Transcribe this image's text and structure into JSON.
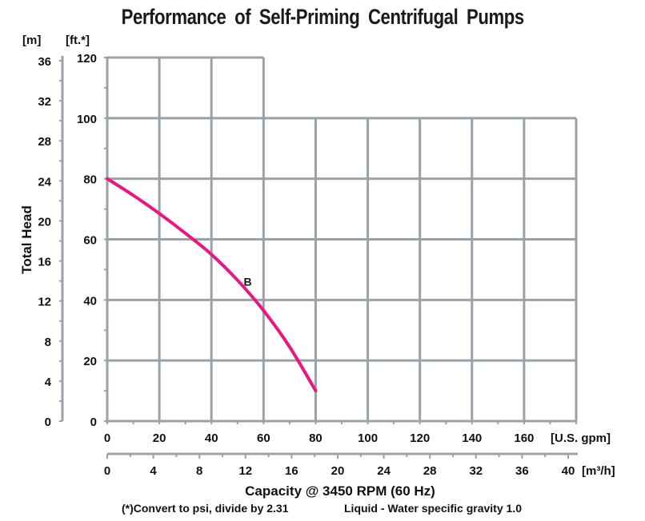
{
  "chart_data": {
    "type": "line",
    "title": "Performance of Self-Priming Centrifugal Pumps",
    "ylabel": "Total Head",
    "xlabel": "Capacity @ 3450 RPM (60 Hz)",
    "footnote_left": "(*)Convert to psi, divide by 2.31",
    "footnote_right": "Liquid - Water specific gravity 1.0",
    "y_primary": {
      "unit": "[ft.*]",
      "range": [
        0,
        120
      ],
      "ticks": [
        0,
        20,
        40,
        60,
        80,
        100,
        120
      ]
    },
    "y_secondary": {
      "unit": "[m]",
      "range": [
        0,
        36
      ],
      "ticks": [
        0,
        4,
        8,
        12,
        16,
        20,
        24,
        28,
        32,
        36
      ]
    },
    "x_primary": {
      "unit": "[U.S. gpm]",
      "range": [
        0,
        180
      ],
      "ticks": [
        0,
        20,
        40,
        60,
        80,
        100,
        120,
        140,
        160
      ]
    },
    "x_secondary": {
      "unit": "[m³/h]",
      "range": [
        0,
        40
      ],
      "ticks": [
        0,
        4,
        8,
        12,
        16,
        20,
        24,
        28,
        32,
        36,
        40
      ]
    },
    "grid": true,
    "series": [
      {
        "name": "B",
        "color": "#e6197f",
        "x": [
          0,
          10,
          20,
          30,
          40,
          50,
          60,
          70,
          80
        ],
        "y": [
          80,
          74.5,
          68.5,
          62,
          55,
          46.5,
          36.5,
          24.5,
          10
        ]
      }
    ],
    "annotations": [
      {
        "text": "B",
        "x": 53,
        "y": 46
      }
    ]
  }
}
